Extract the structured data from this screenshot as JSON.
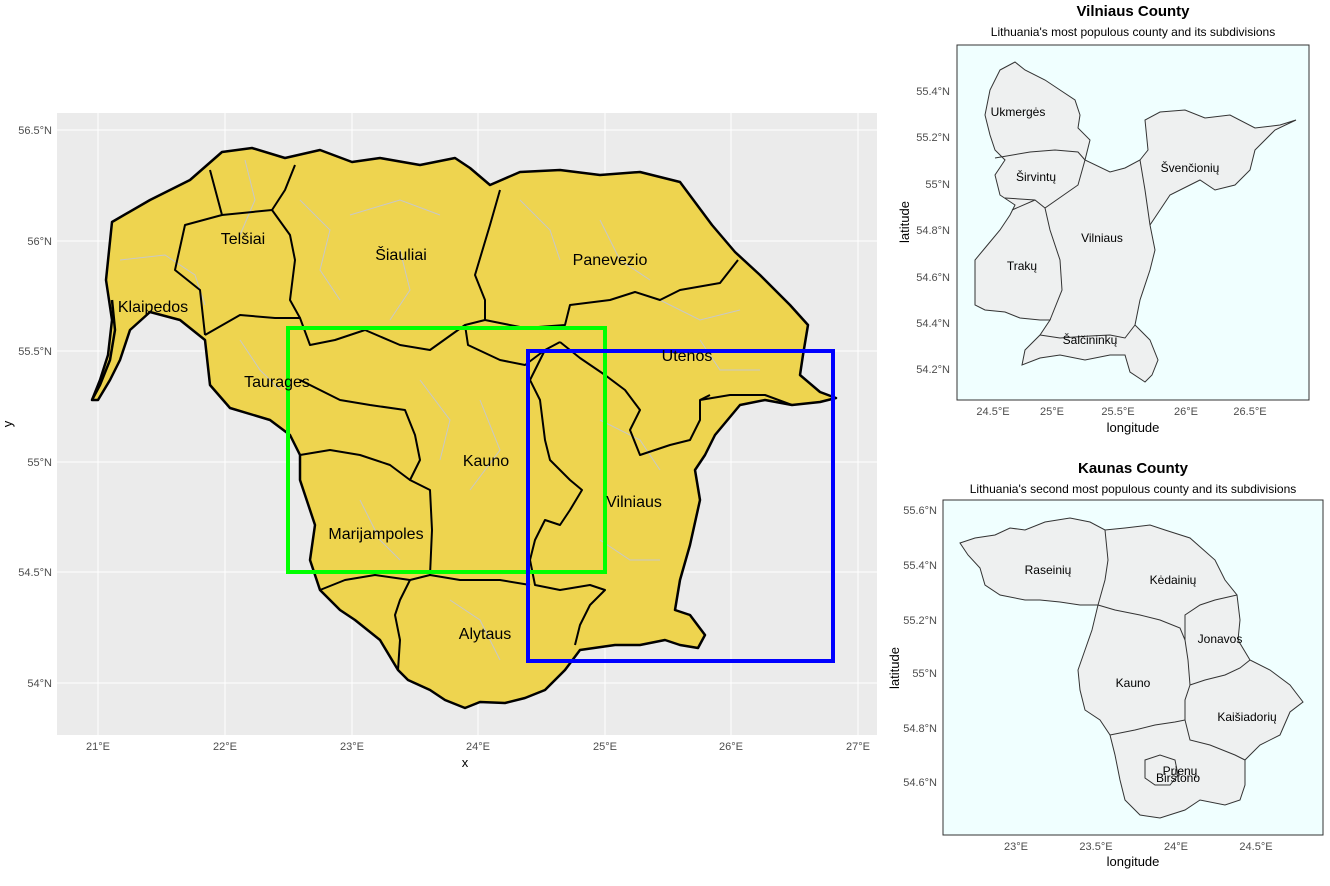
{
  "colors": {
    "panel_main": "#ebebeb",
    "grid_main": "#ffffff",
    "county_fill": "#eed44f",
    "county_stroke": "#000000",
    "district_stroke": "#c8c8c8",
    "box_kaunas": "#00ff00",
    "box_vilnius": "#0000ff",
    "inset_bg": "#f0ffff",
    "inset_fill": "#eef0f0"
  },
  "main_map": {
    "xlabel": "x",
    "ylabel": "y",
    "x_ticks": [
      "21°E",
      "22°E",
      "23°E",
      "24°E",
      "25°E",
      "26°E",
      "27°E"
    ],
    "y_ticks": [
      "56.5°N",
      "56°N",
      "55.5°N",
      "55°N",
      "54.5°N",
      "54°N"
    ],
    "regions": [
      "Telšiai",
      "Šiauliai",
      "Panevezio",
      "Klaipedos",
      "Taurages",
      "Utenos",
      "Kauno",
      "Vilniaus",
      "Marijampoles",
      "Alytaus"
    ]
  },
  "vilnius_inset": {
    "title": "Vilniaus County",
    "subtitle": "Lithuania's most populous county and its subdivisions",
    "xlabel": "longitude",
    "ylabel": "latitude",
    "x_ticks": [
      "24.5°E",
      "25°E",
      "25.5°E",
      "26°E",
      "26.5°E"
    ],
    "y_ticks": [
      "55.4°N",
      "55.2°N",
      "55°N",
      "54.8°N",
      "54.6°N",
      "54.4°N",
      "54.2°N"
    ],
    "regions": [
      "Ukmergės",
      "Širvintų",
      "Švenčionių",
      "Vilniaus",
      "Trakų",
      "Šalčininkų"
    ]
  },
  "kaunas_inset": {
    "title": "Kaunas County",
    "subtitle": "Lithuania's second most populous county and its subdivisions",
    "xlabel": "longitude",
    "ylabel": "latitude",
    "x_ticks": [
      "23°E",
      "23.5°E",
      "24°E",
      "24.5°E"
    ],
    "y_ticks": [
      "55.6°N",
      "55.4°N",
      "55.2°N",
      "55°N",
      "54.8°N",
      "54.6°N"
    ],
    "regions": [
      "Raseinių",
      "Kėdainių",
      "Jonavos",
      "Kauno",
      "Kaišiadorių",
      "Prienų",
      "Birštono"
    ]
  }
}
